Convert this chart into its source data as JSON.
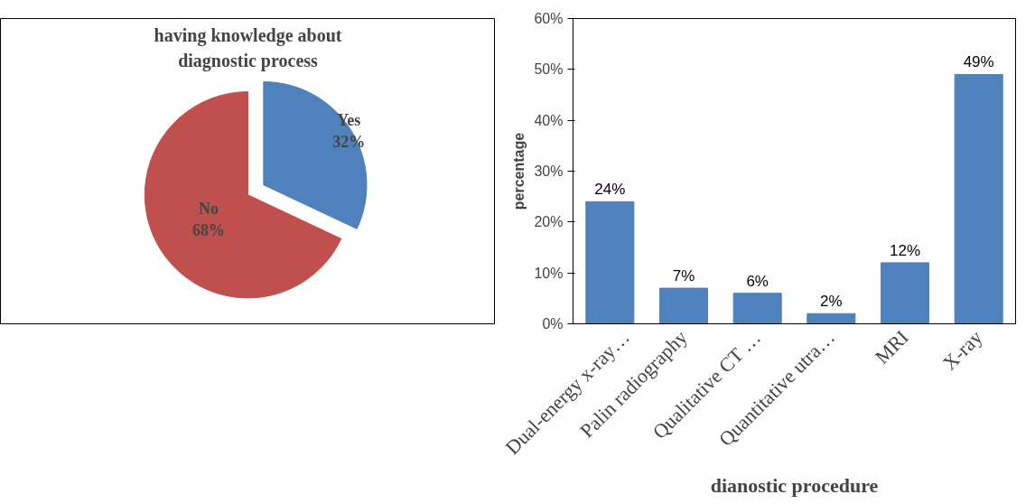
{
  "chart_data": [
    {
      "type": "pie",
      "title": "having knowledge about diagnostic process",
      "categories": [
        "Yes",
        "No"
      ],
      "values": [
        32,
        68
      ],
      "colors": [
        "#4f81bd",
        "#c0504d"
      ],
      "value_labels": [
        "32%",
        "68%"
      ]
    },
    {
      "type": "bar",
      "xlabel": "dianostic procedure",
      "ylabel": "percentage",
      "categories": [
        "Dual-energy x-ray…",
        "Palin radiography",
        "Qualitative CT …",
        "Quantitative utra…",
        "MRI",
        "X-ray"
      ],
      "values": [
        24,
        7,
        6,
        2,
        12,
        49
      ],
      "value_labels": [
        "24%",
        "7%",
        "6%",
        "2%",
        "12%",
        "49%"
      ],
      "color": "#4f81bd",
      "ylim": [
        0,
        60
      ],
      "yticks": [
        {
          "value": 0,
          "label": "0%"
        },
        {
          "value": 10,
          "label": "10%"
        },
        {
          "value": 20,
          "label": "20%"
        },
        {
          "value": 30,
          "label": "30%"
        },
        {
          "value": 40,
          "label": "40%"
        },
        {
          "value": 50,
          "label": "50%"
        },
        {
          "value": 60,
          "label": "60%"
        }
      ],
      "grid": false
    }
  ]
}
